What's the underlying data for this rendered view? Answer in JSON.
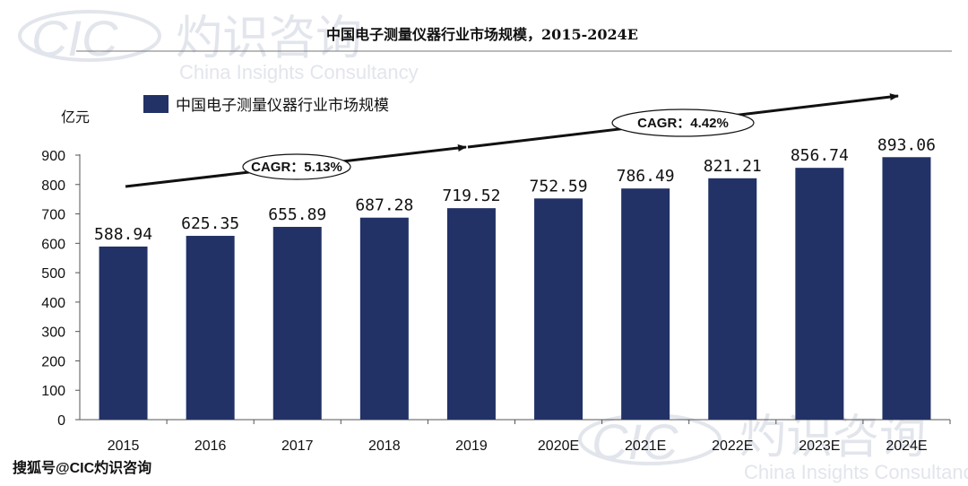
{
  "watermark": {
    "logo_text": "CIC",
    "logo_cn": "灼识咨询",
    "subtitle": "China Insights Consultancy"
  },
  "footer": {
    "source": "搜狐号@CIC灼识咨询"
  },
  "colors": {
    "bar": "#223266",
    "axis": "#555555",
    "arrow": "#111111",
    "watermark": "#dfe3ea"
  },
  "chart_data": {
    "type": "bar",
    "title": "中国电子测量仪器行业市场规模，2015-2024E",
    "unit_label": "亿元",
    "xlabel": "",
    "ylabel": "",
    "categories": [
      "2015",
      "2016",
      "2017",
      "2018",
      "2019",
      "2020E",
      "2021E",
      "2022E",
      "2023E",
      "2024E"
    ],
    "series": [
      {
        "name": "中国电子测量仪器行业市场规模",
        "values": [
          588.94,
          625.35,
          655.89,
          687.28,
          719.52,
          752.59,
          786.49,
          821.21,
          856.74,
          893.06
        ],
        "value_labels": [
          "588.94",
          "625.35",
          "655.89",
          "687.28",
          "719.52",
          "752.59",
          "786.49",
          "821.21",
          "856.74",
          "893.06"
        ]
      }
    ],
    "yticks": [
      0,
      100,
      200,
      300,
      400,
      500,
      600,
      700,
      800,
      900
    ],
    "ylim": [
      0,
      900
    ],
    "grid": false,
    "legend_position": "top-left",
    "annotations": [
      {
        "text": "CAGR：5.13%",
        "from": "2015",
        "to": "2019"
      },
      {
        "text": "CAGR：4.42%",
        "from": "2019",
        "to": "2024E"
      }
    ]
  }
}
